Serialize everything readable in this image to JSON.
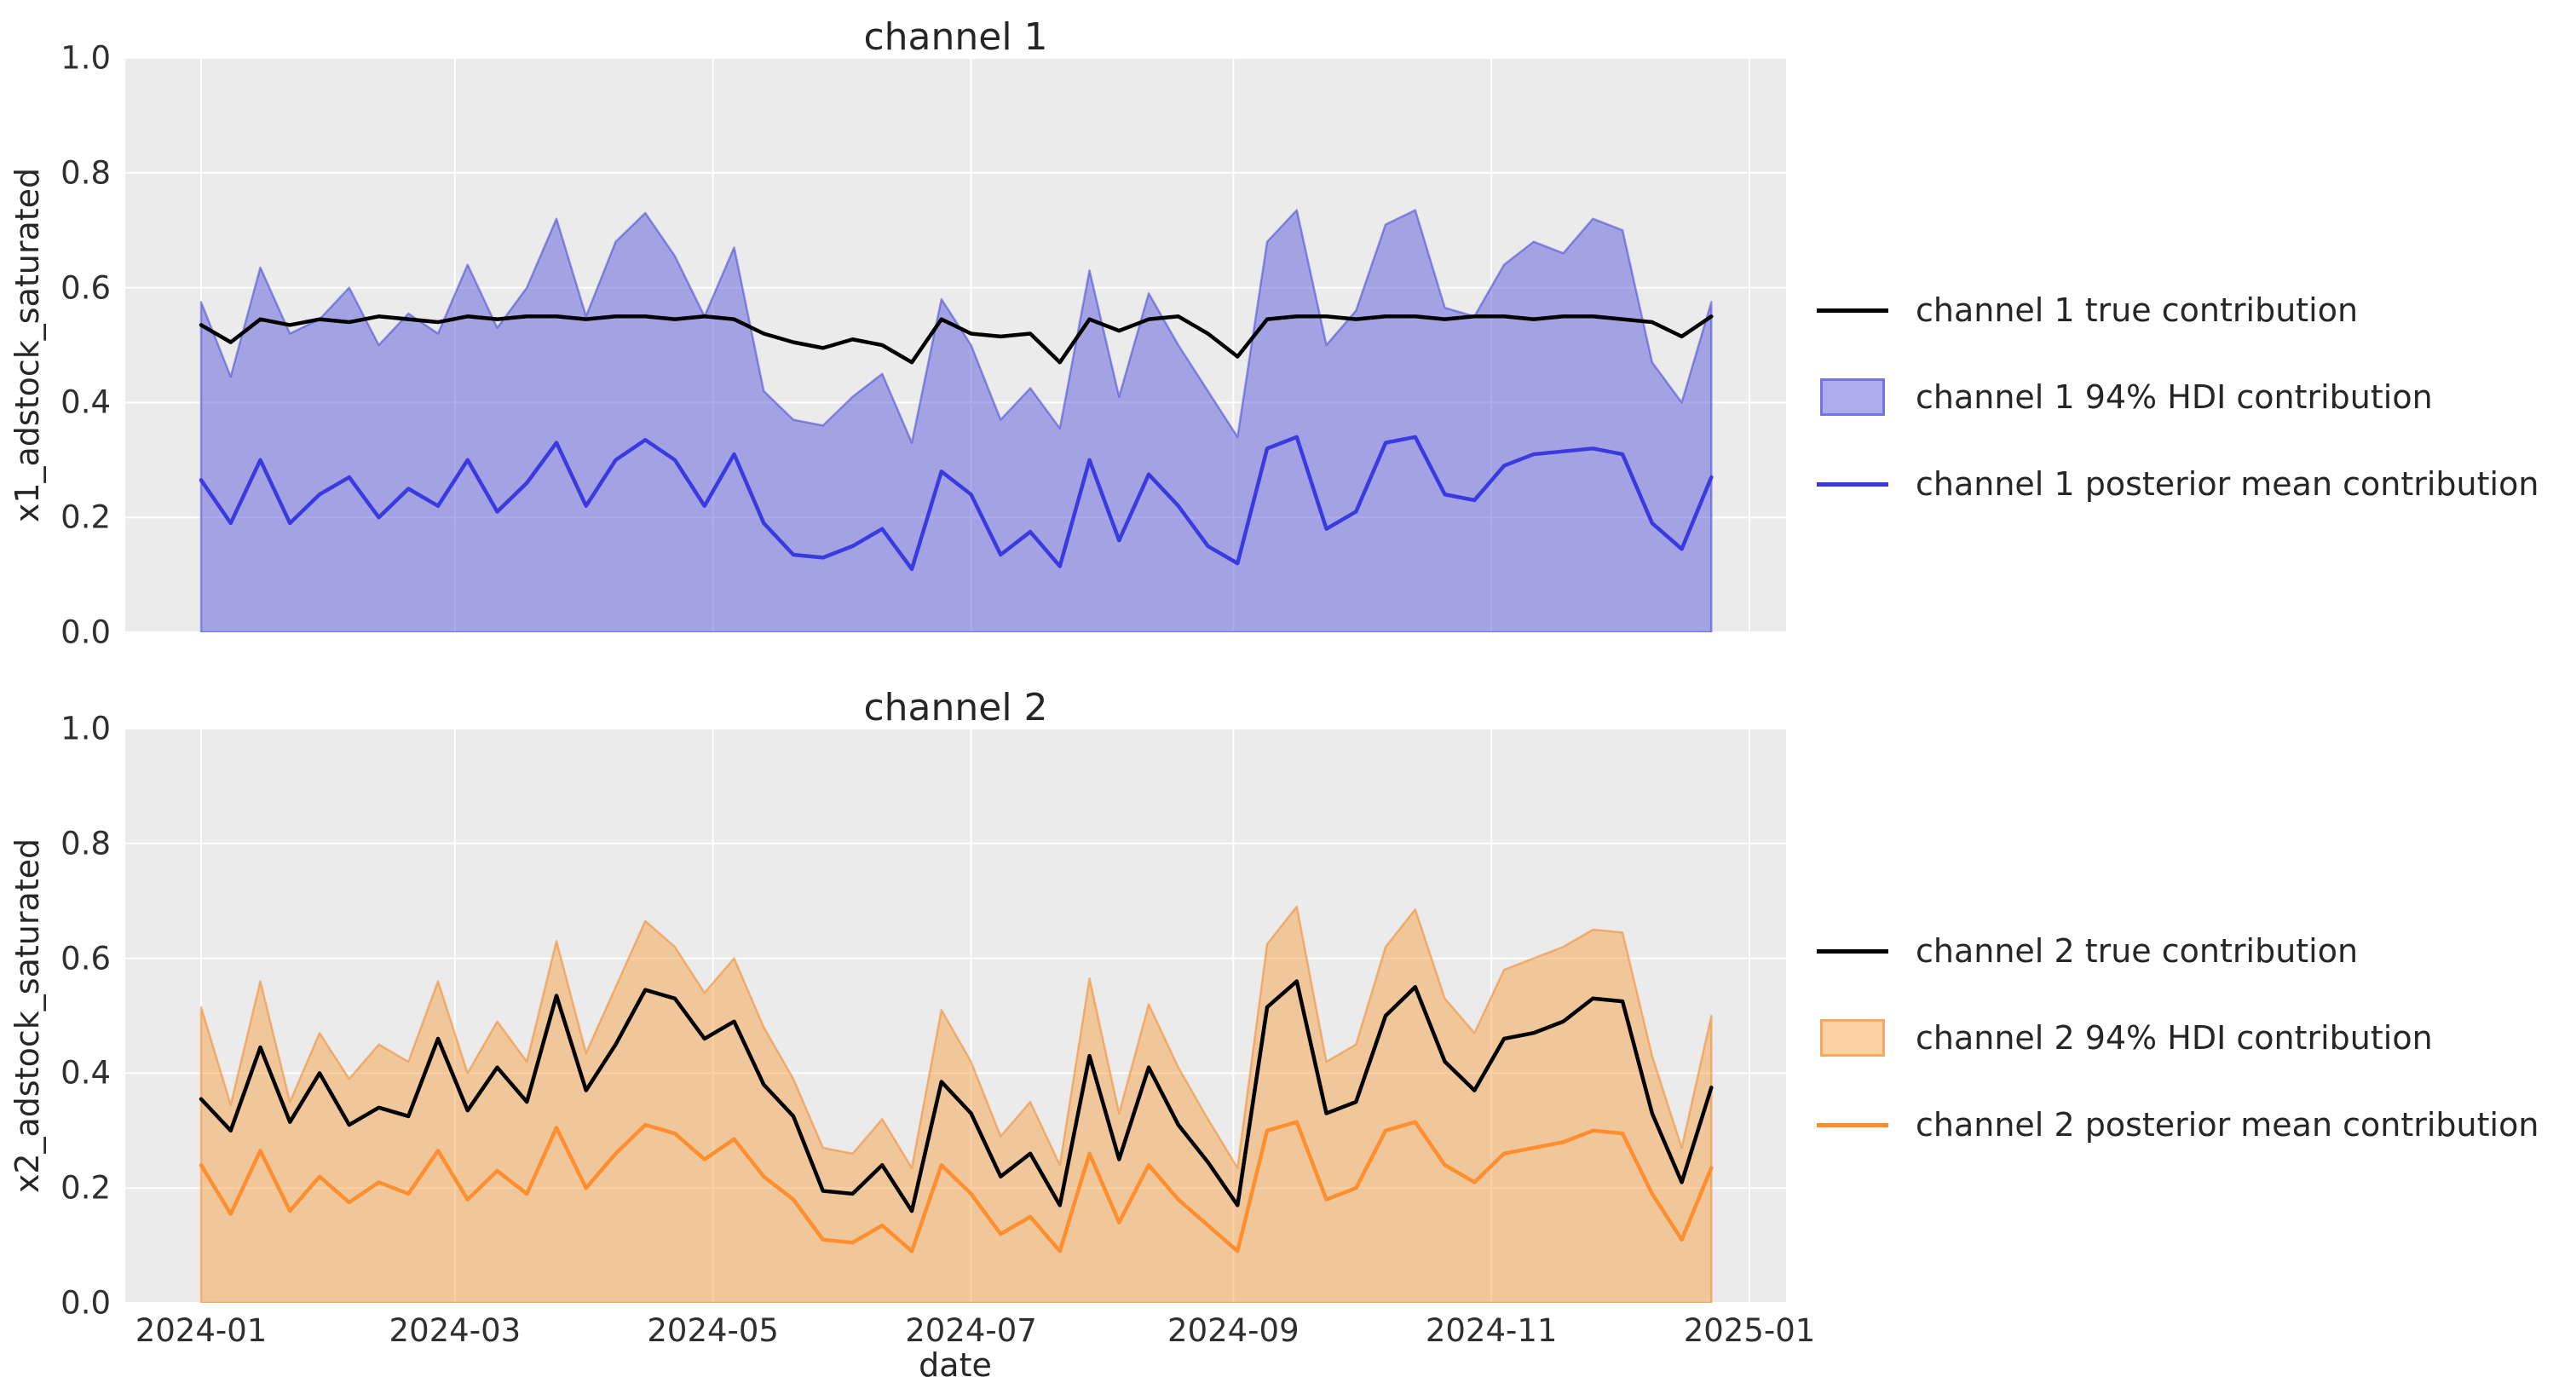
{
  "figure": {
    "background": "#ffffff",
    "axes_background": "#ebebeb",
    "grid_color": "#ffffff",
    "text_color": "#2f2f2f",
    "xlabel": "date",
    "x_tick_labels": [
      "2024-01",
      "2024-03",
      "2024-05",
      "2024-07",
      "2024-09",
      "2024-11",
      "2025-01"
    ],
    "y_tick_labels": [
      "0.0",
      "0.2",
      "0.4",
      "0.6",
      "0.8",
      "1.0"
    ]
  },
  "chart_data": [
    {
      "type": "area",
      "title": "channel 1",
      "ylabel": "x1_adstock_saturated",
      "xlabel": "date",
      "ylim": [
        0.0,
        1.0
      ],
      "grid": true,
      "legend_position": "center right, outside axes",
      "x_start_date": "2024-01-01",
      "x_step_days": 7,
      "n_points": 52,
      "x_tick_labels": [
        "2024-01",
        "2024-03",
        "2024-05",
        "2024-07",
        "2024-09",
        "2024-11",
        "2025-01"
      ],
      "y_tick_labels": [
        "0.0",
        "0.2",
        "0.4",
        "0.6",
        "0.8",
        "1.0"
      ],
      "colors": {
        "true_line": "#000000",
        "mean_line": "#3a3ae0",
        "band_fill": "rgba(92,92,221,0.5)",
        "band_edge": "rgba(70,70,215,0.55)"
      },
      "legend": [
        {
          "label": "channel 1 true contribution",
          "swatch": "line",
          "color": "#000000"
        },
        {
          "label": "channel 1 94% HDI contribution",
          "swatch": "patch",
          "color": "rgba(92,92,221,0.5)"
        },
        {
          "label": "channel 1 posterior mean contribution",
          "swatch": "line",
          "color": "#3a3ae0"
        }
      ],
      "series": {
        "true_contribution": [
          0.535,
          0.505,
          0.545,
          0.535,
          0.545,
          0.54,
          0.55,
          0.545,
          0.54,
          0.55,
          0.545,
          0.55,
          0.55,
          0.545,
          0.55,
          0.55,
          0.545,
          0.55,
          0.545,
          0.52,
          0.505,
          0.495,
          0.51,
          0.5,
          0.47,
          0.545,
          0.52,
          0.515,
          0.52,
          0.47,
          0.545,
          0.525,
          0.545,
          0.55,
          0.52,
          0.48,
          0.545,
          0.55,
          0.55,
          0.545,
          0.55,
          0.55,
          0.545,
          0.55,
          0.55,
          0.545,
          0.55,
          0.55,
          0.545,
          0.54,
          0.515,
          0.55
        ],
        "posterior_mean": [
          0.265,
          0.19,
          0.3,
          0.19,
          0.24,
          0.27,
          0.2,
          0.25,
          0.22,
          0.3,
          0.21,
          0.26,
          0.33,
          0.22,
          0.3,
          0.335,
          0.3,
          0.22,
          0.31,
          0.19,
          0.135,
          0.13,
          0.15,
          0.18,
          0.11,
          0.28,
          0.24,
          0.135,
          0.175,
          0.115,
          0.3,
          0.16,
          0.275,
          0.22,
          0.15,
          0.12,
          0.32,
          0.34,
          0.18,
          0.21,
          0.33,
          0.34,
          0.24,
          0.23,
          0.29,
          0.31,
          0.315,
          0.32,
          0.31,
          0.19,
          0.145,
          0.27
        ],
        "hdi_upper": [
          0.575,
          0.445,
          0.635,
          0.52,
          0.545,
          0.6,
          0.5,
          0.555,
          0.52,
          0.64,
          0.53,
          0.6,
          0.72,
          0.55,
          0.68,
          0.73,
          0.655,
          0.55,
          0.67,
          0.42,
          0.37,
          0.36,
          0.41,
          0.45,
          0.33,
          0.58,
          0.5,
          0.37,
          0.425,
          0.355,
          0.63,
          0.41,
          0.59,
          0.5,
          0.42,
          0.34,
          0.68,
          0.735,
          0.5,
          0.56,
          0.71,
          0.735,
          0.565,
          0.55,
          0.64,
          0.68,
          0.66,
          0.72,
          0.7,
          0.47,
          0.4,
          0.575
        ],
        "hdi_lower": 0.0
      }
    },
    {
      "type": "area",
      "title": "channel 2",
      "ylabel": "x2_adstock_saturated",
      "xlabel": "date",
      "ylim": [
        0.0,
        1.0
      ],
      "grid": true,
      "legend_position": "center right, outside axes",
      "x_start_date": "2024-01-01",
      "x_step_days": 7,
      "n_points": 52,
      "x_tick_labels": [
        "2024-01",
        "2024-03",
        "2024-05",
        "2024-07",
        "2024-09",
        "2024-11",
        "2025-01"
      ],
      "y_tick_labels": [
        "0.0",
        "0.2",
        "0.4",
        "0.6",
        "0.8",
        "1.0"
      ],
      "colors": {
        "true_line": "#000000",
        "mean_line": "#ff8e2e",
        "band_fill": "rgba(246,152,58,0.45)",
        "band_edge": "rgba(242,135,40,0.55)"
      },
      "legend": [
        {
          "label": "channel 2 true contribution",
          "swatch": "line",
          "color": "#000000"
        },
        {
          "label": "channel 2 94% HDI contribution",
          "swatch": "patch",
          "color": "rgba(246,152,58,0.45)"
        },
        {
          "label": "channel 2 posterior mean contribution",
          "swatch": "line",
          "color": "#ff8e2e"
        }
      ],
      "series": {
        "true_contribution": [
          0.355,
          0.3,
          0.445,
          0.315,
          0.4,
          0.31,
          0.34,
          0.325,
          0.46,
          0.335,
          0.41,
          0.35,
          0.535,
          0.37,
          0.45,
          0.545,
          0.53,
          0.46,
          0.49,
          0.38,
          0.325,
          0.195,
          0.19,
          0.24,
          0.16,
          0.385,
          0.33,
          0.22,
          0.26,
          0.17,
          0.43,
          0.25,
          0.41,
          0.31,
          0.245,
          0.17,
          0.515,
          0.56,
          0.33,
          0.35,
          0.5,
          0.55,
          0.42,
          0.37,
          0.46,
          0.47,
          0.49,
          0.53,
          0.525,
          0.33,
          0.21,
          0.375
        ],
        "posterior_mean": [
          0.24,
          0.155,
          0.265,
          0.16,
          0.22,
          0.175,
          0.21,
          0.19,
          0.265,
          0.18,
          0.23,
          0.19,
          0.305,
          0.2,
          0.26,
          0.31,
          0.295,
          0.25,
          0.285,
          0.22,
          0.18,
          0.11,
          0.105,
          0.135,
          0.09,
          0.24,
          0.19,
          0.12,
          0.15,
          0.09,
          0.26,
          0.14,
          0.24,
          0.18,
          0.135,
          0.09,
          0.3,
          0.315,
          0.18,
          0.2,
          0.3,
          0.315,
          0.24,
          0.21,
          0.26,
          0.27,
          0.28,
          0.3,
          0.295,
          0.19,
          0.11,
          0.235
        ],
        "hdi_upper": [
          0.515,
          0.345,
          0.56,
          0.35,
          0.47,
          0.39,
          0.45,
          0.42,
          0.56,
          0.4,
          0.49,
          0.42,
          0.63,
          0.435,
          0.55,
          0.665,
          0.62,
          0.54,
          0.6,
          0.48,
          0.39,
          0.27,
          0.26,
          0.32,
          0.235,
          0.51,
          0.42,
          0.29,
          0.35,
          0.24,
          0.565,
          0.33,
          0.52,
          0.41,
          0.32,
          0.235,
          0.625,
          0.69,
          0.42,
          0.45,
          0.62,
          0.685,
          0.53,
          0.47,
          0.58,
          0.6,
          0.62,
          0.65,
          0.645,
          0.43,
          0.27,
          0.5
        ],
        "hdi_lower": 0.0
      }
    }
  ]
}
